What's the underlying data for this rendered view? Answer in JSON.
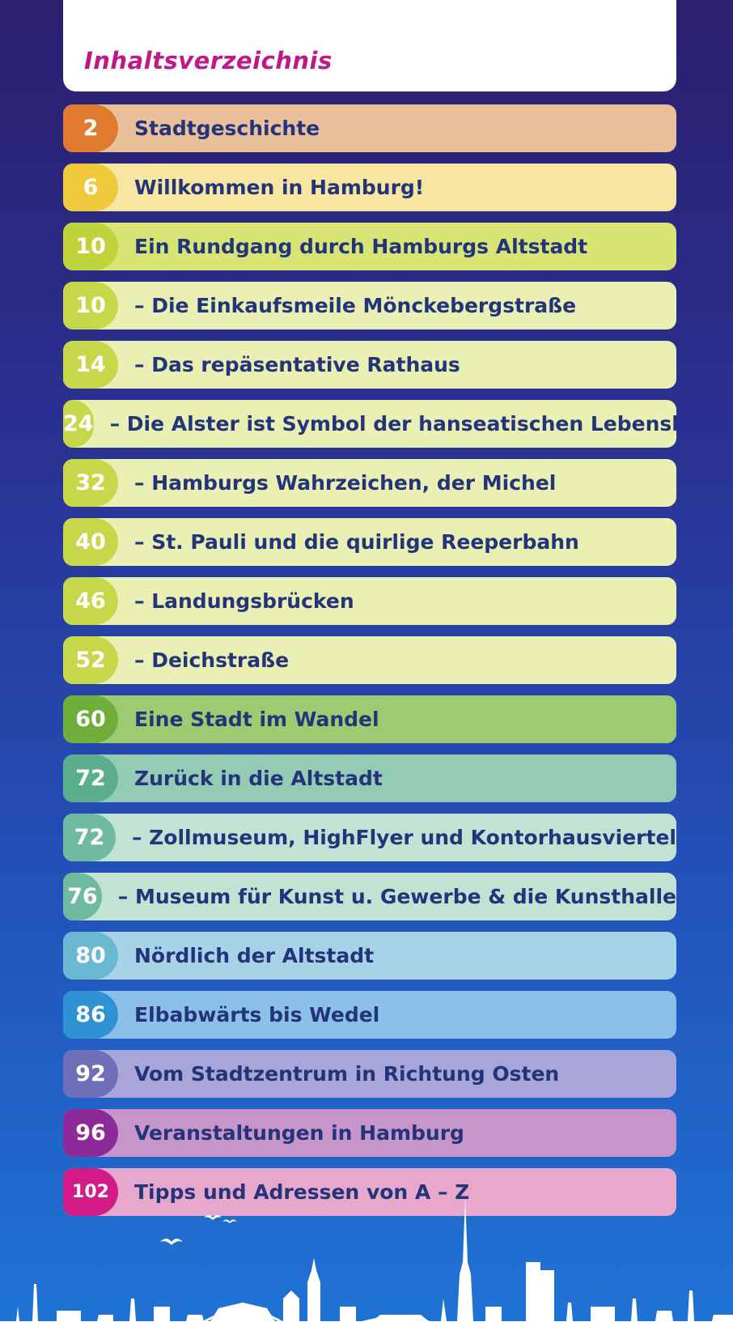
{
  "header": {
    "title": "Inhaltsverzeichnis"
  },
  "toc": [
    {
      "page": "2",
      "title": "Stadtgeschichte",
      "num_color": "#e07a2e",
      "bg_color": "#e9c09a"
    },
    {
      "page": "6",
      "title": "Willkommen in Hamburg!",
      "num_color": "#f0c93a",
      "bg_color": "#f7e6a0"
    },
    {
      "page": "10",
      "title": "Ein Rundgang durch Hamburgs Altstadt",
      "num_color": "#bfd33a",
      "bg_color": "#d8e574"
    },
    {
      "page": "10",
      "title": "– Die Einkaufsmeile Mönckebergstraße",
      "num_color": "#c6d84a",
      "bg_color": "#eaf0b3"
    },
    {
      "page": "14",
      "title": "– Das repäsentative Rathaus",
      "num_color": "#c6d84a",
      "bg_color": "#eaf0b3"
    },
    {
      "page": "24",
      "title": "– Die Alster ist Symbol der hanseatischen Lebenslust",
      "num_color": "#c6d84a",
      "bg_color": "#eaf0b3"
    },
    {
      "page": "32",
      "title": "– Hamburgs Wahrzeichen, der Michel",
      "num_color": "#c6d84a",
      "bg_color": "#eaf0b3"
    },
    {
      "page": "40",
      "title": "– St. Pauli und die quirlige Reeperbahn",
      "num_color": "#c6d84a",
      "bg_color": "#eaf0b3"
    },
    {
      "page": "46",
      "title": "– Landungsbrücken",
      "num_color": "#c6d84a",
      "bg_color": "#eaf0b3"
    },
    {
      "page": "52",
      "title": "– Deichstraße",
      "num_color": "#c6d84a",
      "bg_color": "#eaf0b3"
    },
    {
      "page": "60",
      "title": "Eine Stadt im Wandel",
      "num_color": "#6fae3a",
      "bg_color": "#9ccb72"
    },
    {
      "page": "72",
      "title": "Zurück in die Altstadt",
      "num_color": "#5aae8e",
      "bg_color": "#94cbb5"
    },
    {
      "page": "72",
      "title": "– Zollmuseum, HighFlyer und Kontorhausviertel",
      "num_color": "#6fbaa0",
      "bg_color": "#c2e3d4"
    },
    {
      "page": "76",
      "title": "– Museum für Kunst u. Gewerbe & die Kunsthalle",
      "num_color": "#6fbaa0",
      "bg_color": "#c2e3d4"
    },
    {
      "page": "80",
      "title": "Nördlich der Altstadt",
      "num_color": "#6bb8d2",
      "bg_color": "#a6d3e6"
    },
    {
      "page": "86",
      "title": "Elbabwärts bis Wedel",
      "num_color": "#2f93d3",
      "bg_color": "#8cc0e8"
    },
    {
      "page": "92",
      "title": "Vom Stadtzentrum in Richtung Osten",
      "num_color": "#6f6fb9",
      "bg_color": "#a8a6d8"
    },
    {
      "page": "96",
      "title": "Veranstaltungen in Hamburg",
      "num_color": "#8d2a9a",
      "bg_color": "#c795c9"
    },
    {
      "page": "102",
      "title": "Tipps und Adressen von A – Z",
      "num_color": "#d31b87",
      "bg_color": "#e7a8cc"
    }
  ]
}
